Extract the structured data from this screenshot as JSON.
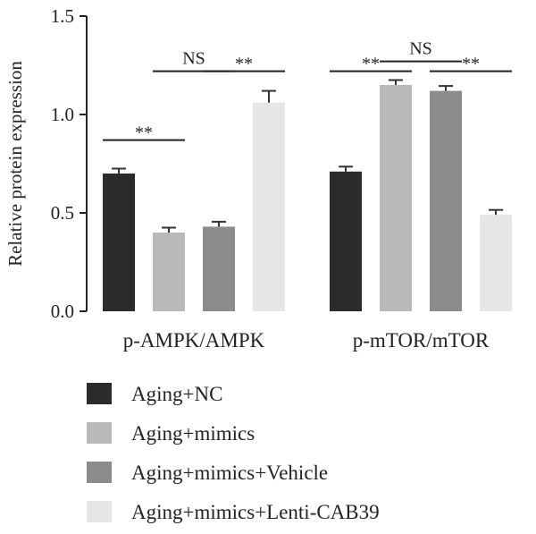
{
  "chart_data": {
    "type": "bar",
    "title": "",
    "xlabel": "",
    "ylabel": "Relative protein expression",
    "ylim": [
      0,
      1.5
    ],
    "yticks": [
      "0.0",
      "0.5",
      "1.0",
      "1.5"
    ],
    "grid": false,
    "legend_position": "bottom",
    "categories": [
      "p-AMPK/AMPK",
      "p-mTOR/mTOR"
    ],
    "series": [
      {
        "name": "Aging+NC",
        "color": "#2b2b2b",
        "values": [
          0.7,
          0.71
        ],
        "errors": [
          0.025,
          0.025
        ]
      },
      {
        "name": "Aging+mimics",
        "color": "#b9b9b9",
        "values": [
          0.4,
          1.15
        ],
        "errors": [
          0.025,
          0.025
        ]
      },
      {
        "name": "Aging+mimics+Vehicle",
        "color": "#8c8c8c",
        "values": [
          0.43,
          1.12
        ],
        "errors": [
          0.025,
          0.025
        ]
      },
      {
        "name": "Aging+mimics+Lenti-CAB39",
        "color": "#e6e6e6",
        "values": [
          1.06,
          0.49
        ],
        "errors": [
          0.06,
          0.025
        ]
      }
    ],
    "significance": [
      {
        "category": 0,
        "from": 0,
        "to": 1,
        "label": "**",
        "y": 0.87
      },
      {
        "category": 0,
        "from": 1,
        "to": 2,
        "label": "NS",
        "y": 1.22
      },
      {
        "category": 0,
        "from": 2,
        "to": 3,
        "label": "**",
        "y": 1.22
      },
      {
        "category": 1,
        "from": 0,
        "to": 1,
        "label": "**",
        "y": 1.22
      },
      {
        "category": 1,
        "from": 1,
        "to": 2,
        "label": "NS",
        "y": 1.27
      },
      {
        "category": 1,
        "from": 2,
        "to": 3,
        "label": "**",
        "y": 1.22
      }
    ]
  }
}
